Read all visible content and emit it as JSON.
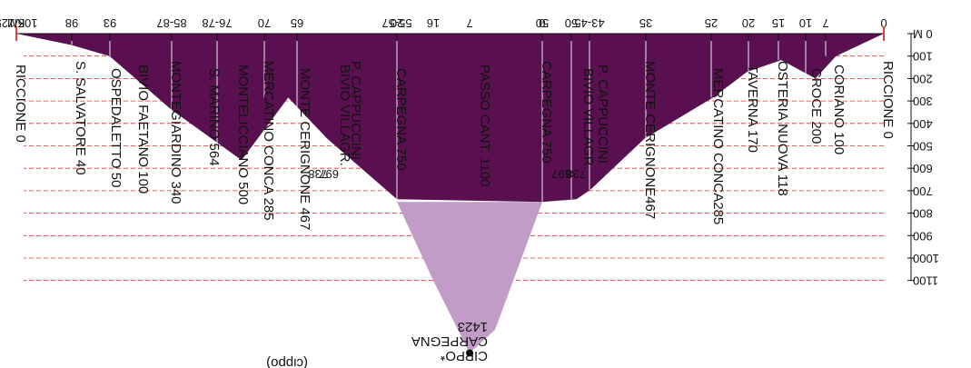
{
  "colors": {
    "profile": "#5a1050",
    "climb": "#c09cc6",
    "grid": "#e03030",
    "axis": "#111111",
    "km_marker": "#e04040"
  },
  "chart_data": {
    "type": "area",
    "title": "",
    "xlabel": "KM",
    "ylabel": "M",
    "orientation": "rotated-180",
    "x_reversed": true,
    "y_reversed": true,
    "xlim": [
      0,
      125
    ],
    "ylim": [
      0,
      1100
    ],
    "y_ticks": [
      0,
      100,
      200,
      300,
      400,
      500,
      600,
      700,
      800,
      900,
      1000,
      1100
    ],
    "y_tick_labels": [
      "0 M",
      "100",
      "200",
      "300",
      "400",
      "500",
      "600",
      "700",
      "800",
      "900",
      "1000",
      "1100"
    ],
    "grid": true,
    "x_tick_labels": [
      "0",
      "7",
      "10",
      "15",
      "20",
      "25",
      "35",
      "43-45",
      "50",
      "50",
      "55-57",
      "65",
      "70",
      "76-78",
      "85-87",
      "93",
      "98",
      "105/125"
    ],
    "x": [
      0,
      7,
      10,
      15,
      20,
      25,
      35,
      43,
      45,
      50,
      56,
      65,
      70,
      76,
      85,
      93,
      98,
      105
    ],
    "altitude": [
      0,
      100,
      200,
      118,
      170,
      285,
      467,
      697,
      738,
      750,
      738,
      467,
      285,
      564,
      340,
      100,
      50,
      0
    ],
    "climb": {
      "name": "CARPEGNA",
      "start_km": 50,
      "summit_km": 59.5,
      "end_km": 50,
      "base_altitude": 750,
      "summit_altitude": 1423
    },
    "climb_ticks": [
      "0",
      "7",
      "16",
      "20"
    ],
    "place_labels": [
      "RICCIONE 0",
      "CORIANO 100",
      "CROCE 200",
      "OSTERIA NUOVA 118",
      "TAVERNA 170",
      "MERCATINO CONCA285",
      "MONTE CERIGNONE467",
      "P. CAPPUCCINI",
      "BIVIO VILLAGR.",
      "CARPEGNA 750",
      "PASSO CANT. 1100",
      "CARPEGNA 750",
      "P. CAPPUCCINI",
      "BIVIO VILLAGR.",
      "MONTE CERIGNONE 467",
      "MERCATINO CONCA 285",
      "MONTELICCIANO 500",
      "S. MARINO 564",
      "MONTEGIARDINO 340",
      "BIVIO FAETANO 100",
      "OSPEDALETTO 50",
      "S. SALVATORE 40",
      "RICCIONE 0"
    ],
    "altitude_notes": [
      "738",
      "697",
      "697",
      "738"
    ],
    "summit_label": [
      "CIPPO*",
      "CARPEGNA",
      "1423"
    ],
    "bottom_caption": "(cippo)"
  }
}
